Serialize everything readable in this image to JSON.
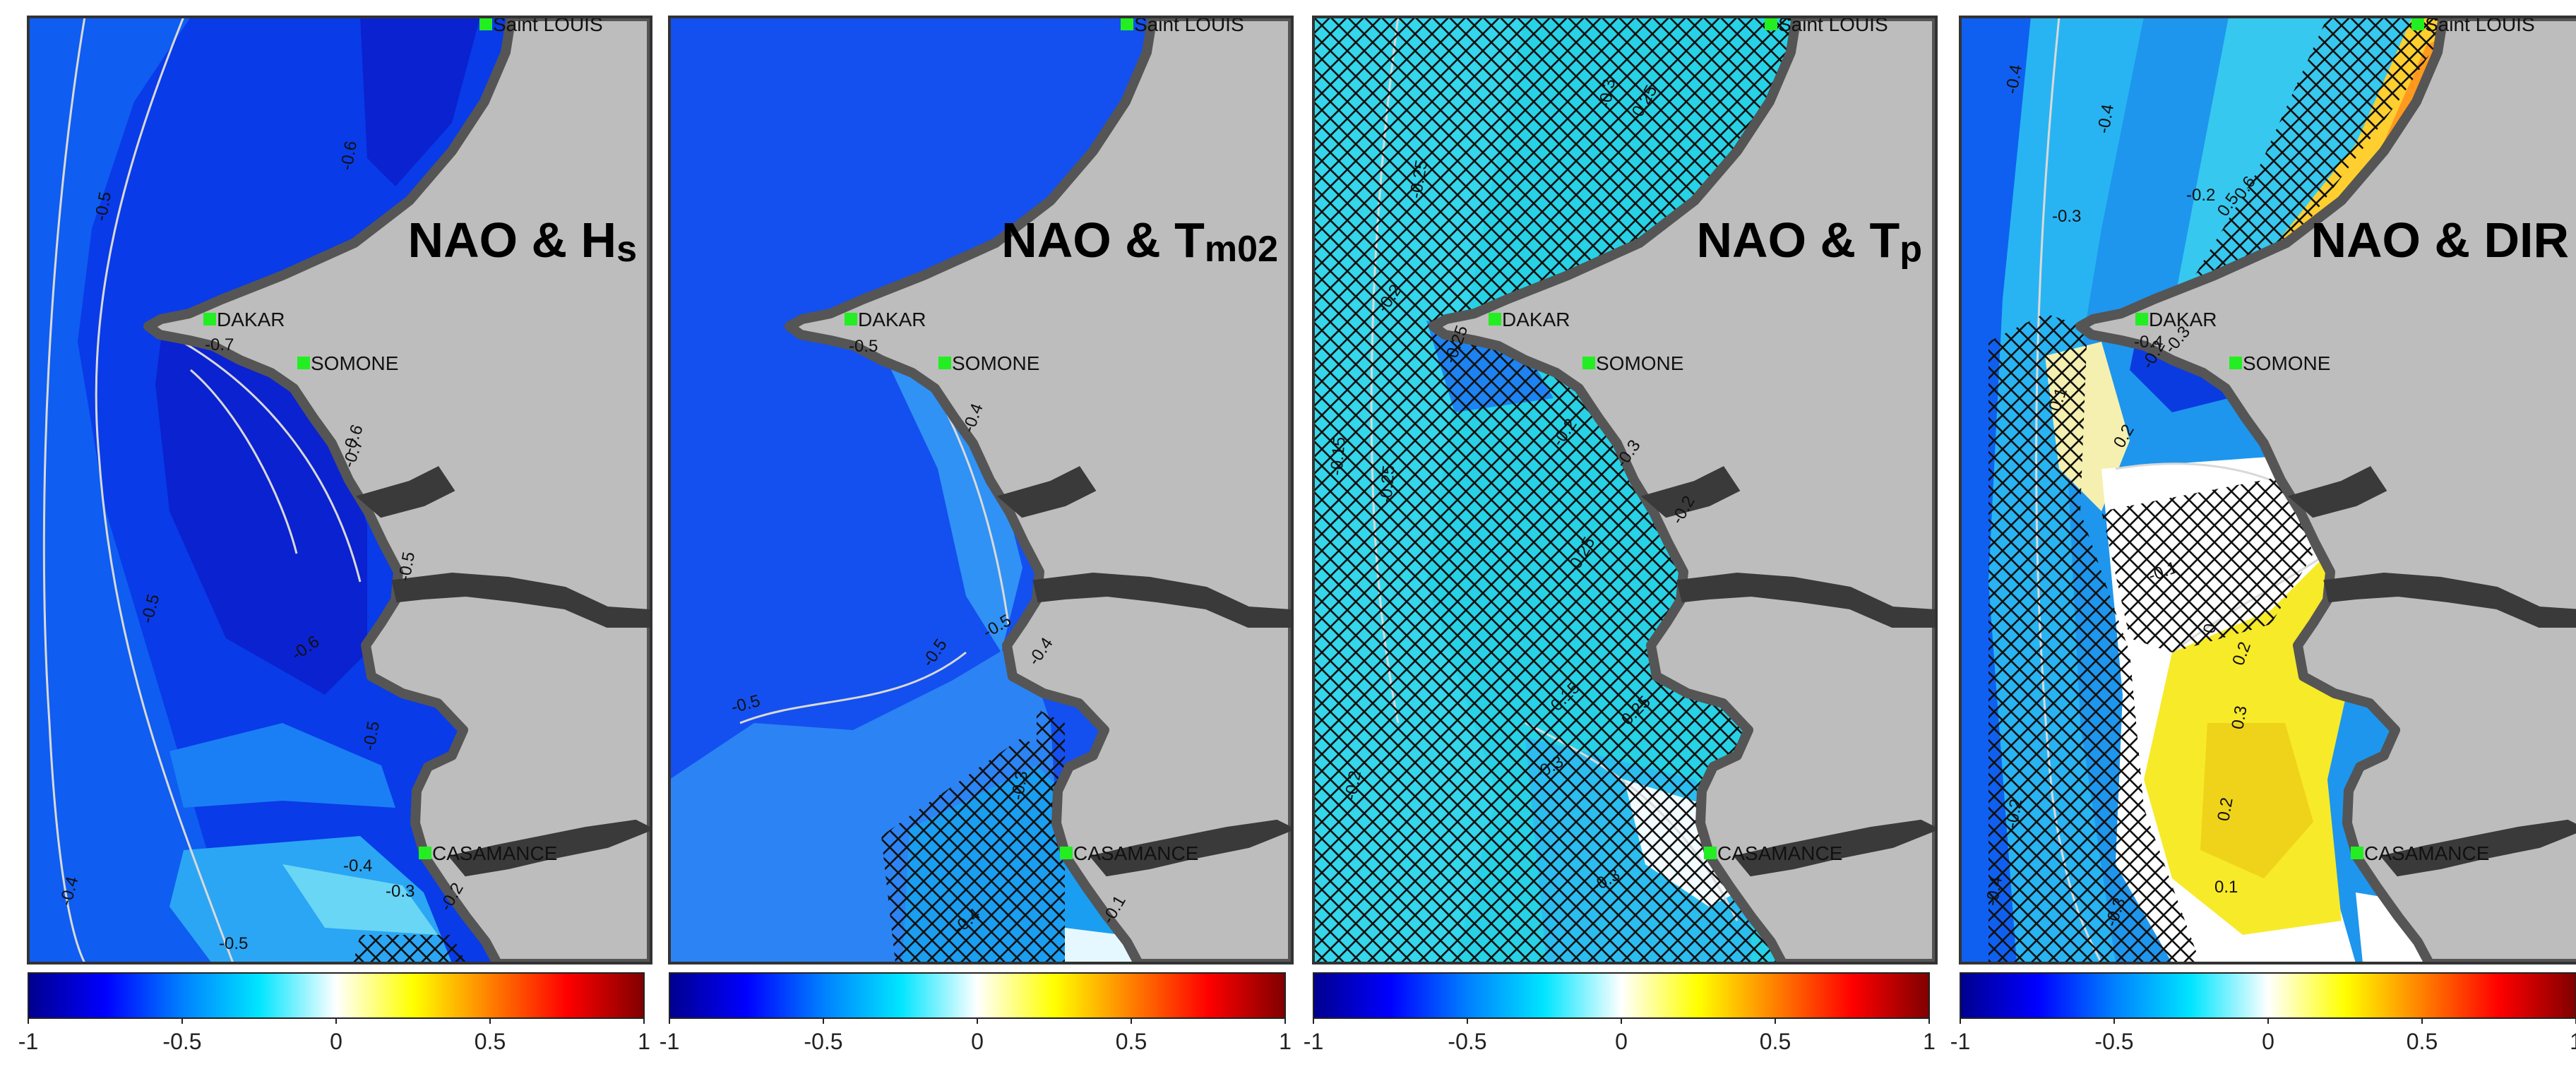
{
  "colors": {
    "land": "#bdbdbd",
    "coast": "#555555",
    "frame": "#333333",
    "city_marker": "#22ee22",
    "hatch": "#111111",
    "contour_line": "#d9d9d9",
    "scale_stops": [
      "#00008f",
      "#0000ff",
      "#0080ff",
      "#00e5ff",
      "#ffffff",
      "#ffff00",
      "#ff8000",
      "#ff0000",
      "#800000"
    ]
  },
  "cities": {
    "saint_louis": "Saint LOUIS",
    "dakar": "DAKAR",
    "somone": "SOMONE",
    "casamance": "CASAMANCE"
  },
  "colorbar_ticks": [
    "-1",
    "-0.5",
    "0",
    "0.5",
    "1"
  ],
  "panels": [
    {
      "id": "hs",
      "title": "NAO & Hs",
      "fill_color": "#0a3be8",
      "hatched": false,
      "contour_labels": [
        "-0.6",
        "-0.5",
        "-0.7",
        "-0.7",
        "-0.6",
        "-0.5",
        "-0.5",
        "-0.6",
        "-0.5",
        "-0.4",
        "-0.3",
        "-0.2",
        "-0.4",
        "-0.5"
      ]
    },
    {
      "id": "tm02",
      "title": "NAO & Tm02",
      "fill_color": "#1450f0",
      "hatched": "south",
      "contour_labels": [
        "-0.5",
        "-0.4",
        "-0.5",
        "-0.4",
        "-0.5",
        "-0.3",
        "-0.5",
        "-0.4",
        "-0.1"
      ]
    },
    {
      "id": "tp",
      "title": "NAO & Tp",
      "fill_color": "#28d2e6",
      "hatched": "all",
      "contour_labels": [
        "-0.25",
        "-0.3",
        "-0.25",
        "-0.2",
        "-0.25",
        "-0.15",
        "-0.25",
        "-0.2",
        "-0.3",
        "-0.25",
        "-0.2",
        "-0.15",
        "-0.3",
        "-0.25",
        "-0.2",
        "-0.3"
      ]
    },
    {
      "id": "dir",
      "title": "NAO & DIR",
      "fill_color": "#1e96ee",
      "hatched": "offshore",
      "contour_labels": [
        "-0.4",
        "-0.4",
        "-0.3",
        "-0.2",
        "0.5",
        "0.6",
        "-0.4",
        "-0.3",
        "-0.2",
        "0.1",
        "0.2",
        "-0.1",
        "0",
        "0.2",
        "0.3",
        "0.2",
        "0.1",
        "-0.2",
        "-0.3",
        "-0.4"
      ]
    }
  ]
}
